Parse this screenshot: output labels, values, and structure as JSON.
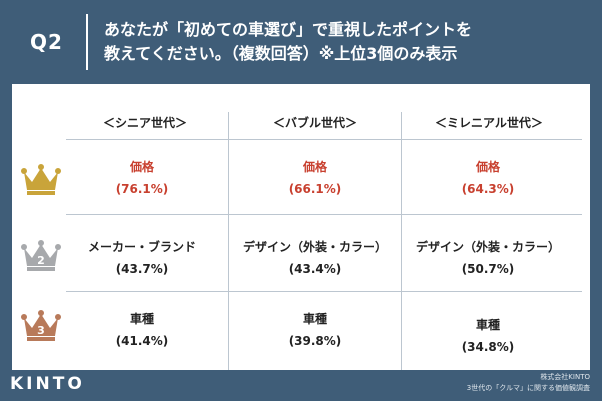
{
  "header": {
    "q_label": "Q2",
    "question_line1": "あなたが「初めての車選び」で重視したポイントを",
    "question_line2": "教えてください。（複数回答）※上位3個のみ表示"
  },
  "columns": [
    "＜シニア世代＞",
    "＜バブル世代＞",
    "＜ミレニアル世代＞"
  ],
  "rows": [
    {
      "rank": "1",
      "crown_color": "#c9a43a",
      "cells": [
        {
          "label": "価格",
          "value": "(76.1%)"
        },
        {
          "label": "価格",
          "value": "(66.1%)"
        },
        {
          "label": "価格",
          "value": "(64.3%)"
        }
      ]
    },
    {
      "rank": "2",
      "crown_color": "#a7a9ac",
      "cells": [
        {
          "label": "メーカー・ブランド",
          "value": "(43.7%)"
        },
        {
          "label": "デザイン（外装・カラー）",
          "value": "(43.4%)"
        },
        {
          "label": "デザイン（外装・カラー）",
          "value": "(50.7%)"
        }
      ]
    },
    {
      "rank": "3",
      "crown_color": "#b87a5a",
      "cells": [
        {
          "label": "車種",
          "value": "(41.4%)"
        },
        {
          "label": "車種",
          "value": "(39.8%)"
        },
        {
          "label": "車種",
          "value": "(34.8%)"
        }
      ]
    }
  ],
  "colors": {
    "background": "#3f5d78",
    "rank1_text": "#c8402f"
  },
  "footer": {
    "logo": "KINTO",
    "credit_line1": "株式会社KINTO",
    "credit_line2": "3世代の「クルマ」に関する価値観調査"
  }
}
